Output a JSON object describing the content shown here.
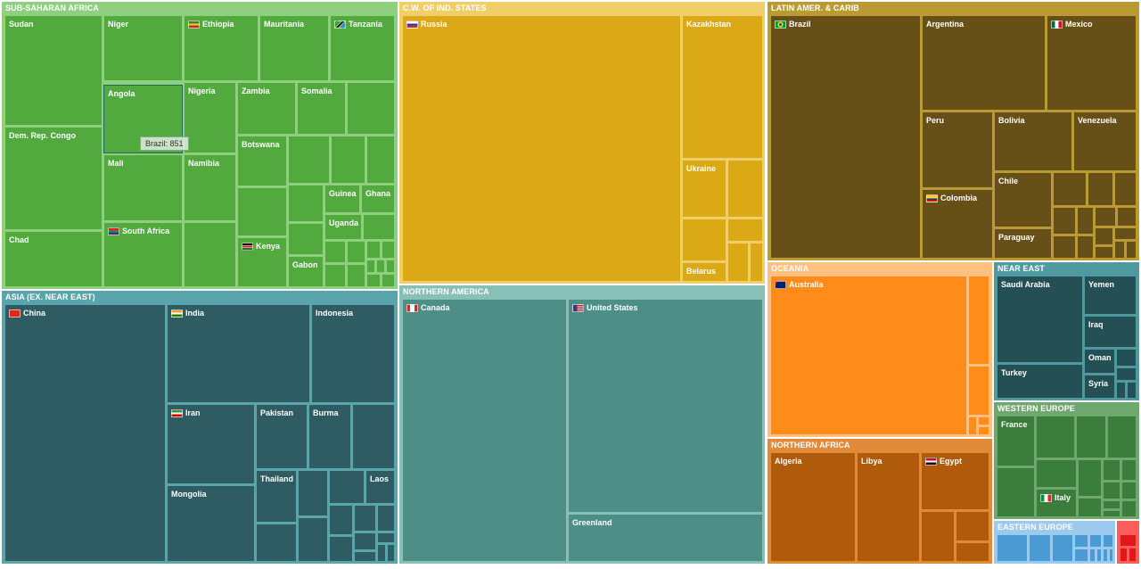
{
  "chart_data": {
    "type": "treemap",
    "tooltip": "Brazil: 851",
    "regions": [
      {
        "name": "SUB-SAHARAN AFRICA",
        "fill": "#52aa3f",
        "header": "#8fd07f",
        "border": "#8fd07f",
        "countries": [
          {
            "name": "Sudan"
          },
          {
            "name": "Niger"
          },
          {
            "name": "Ethiopia",
            "flag": "ethiopia-flag-icon"
          },
          {
            "name": "Mauritania"
          },
          {
            "name": "Tanzania",
            "flag": "tanzania-flag-icon"
          },
          {
            "name": "Dem. Rep. Congo"
          },
          {
            "name": "Chad"
          },
          {
            "name": "Angola",
            "highlight": true
          },
          {
            "name": "Nigeria"
          },
          {
            "name": "Zambia"
          },
          {
            "name": "Somalia"
          },
          {
            "name": "Mali"
          },
          {
            "name": "Namibia"
          },
          {
            "name": "South Africa",
            "flag": "south-africa-flag-icon"
          },
          {
            "name": "Botswana"
          },
          {
            "name": "Kenya",
            "flag": "kenya-flag-icon"
          },
          {
            "name": "Guinea"
          },
          {
            "name": "Ghana"
          },
          {
            "name": "Uganda"
          },
          {
            "name": "Gabon"
          }
        ]
      },
      {
        "name": "ASIA (EX. NEAR EAST)",
        "fill": "#2e5c62",
        "header": "#5aa4ab",
        "border": "#5aa4ab",
        "countries": [
          {
            "name": "China",
            "flag": "china-flag-icon"
          },
          {
            "name": "India",
            "flag": "india-flag-icon"
          },
          {
            "name": "Indonesia"
          },
          {
            "name": "Iran",
            "flag": "iran-flag-icon"
          },
          {
            "name": "Pakistan"
          },
          {
            "name": "Burma"
          },
          {
            "name": "Mongolia"
          },
          {
            "name": "Thailand"
          },
          {
            "name": "Laos"
          }
        ]
      },
      {
        "name": "C.W. OF IND. STATES",
        "fill": "#dba916",
        "header": "#f0ce6a",
        "border": "#f0ce6a",
        "countries": [
          {
            "name": "Russia",
            "flag": "russia-flag-icon"
          },
          {
            "name": "Kazakhstan"
          },
          {
            "name": "Ukraine"
          },
          {
            "name": "Belarus"
          }
        ]
      },
      {
        "name": "NORTHERN AMERICA",
        "fill": "#4d8e87",
        "header": "#88c0b8",
        "border": "#88c0b8",
        "countries": [
          {
            "name": "Canada",
            "flag": "canada-flag-icon"
          },
          {
            "name": "United States",
            "flag": "usa-flag-icon"
          },
          {
            "name": "Greenland"
          }
        ]
      },
      {
        "name": "LATIN AMER. & CARIB",
        "fill": "#675017",
        "header": "#b99a33",
        "border": "#b99a33",
        "countries": [
          {
            "name": "Brazil",
            "flag": "brazil-flag-icon"
          },
          {
            "name": "Argentina"
          },
          {
            "name": "Mexico",
            "flag": "mexico-flag-icon"
          },
          {
            "name": "Peru"
          },
          {
            "name": "Bolivia"
          },
          {
            "name": "Venezuela"
          },
          {
            "name": "Colombia",
            "flag": "colombia-flag-icon"
          },
          {
            "name": "Chile"
          },
          {
            "name": "Paraguay"
          }
        ]
      },
      {
        "name": "OCEANIA",
        "fill": "#ff8c1a",
        "header": "#ffc080",
        "border": "#ffc080",
        "countries": [
          {
            "name": "Australia",
            "flag": "australia-flag-icon"
          }
        ]
      },
      {
        "name": "NEAR EAST",
        "fill": "#245055",
        "header": "#4f9aa0",
        "border": "#4f9aa0",
        "countries": [
          {
            "name": "Saudi Arabia"
          },
          {
            "name": "Yemen"
          },
          {
            "name": "Iraq"
          },
          {
            "name": "Turkey"
          },
          {
            "name": "Oman"
          },
          {
            "name": "Syria"
          }
        ]
      },
      {
        "name": "NORTHERN AFRICA",
        "fill": "#b05b0c",
        "header": "#e08a3a",
        "border": "#e08a3a",
        "countries": [
          {
            "name": "Algeria"
          },
          {
            "name": "Libya"
          },
          {
            "name": "Egypt",
            "flag": "egypt-flag-icon"
          }
        ]
      },
      {
        "name": "WESTERN EUROPE",
        "fill": "#3b7d3b",
        "header": "#6fa86f",
        "border": "#6fa86f",
        "countries": [
          {
            "name": "France"
          },
          {
            "name": "Italy",
            "flag": "italy-flag-icon"
          }
        ]
      },
      {
        "name": "EASTERN EUROPE",
        "fill": "#4a9ad4",
        "header": "#9cc9ee",
        "border": "#9cc9ee",
        "countries": []
      },
      {
        "name": "",
        "fill": "#e01818",
        "header": "#ff5c5c",
        "border": "#ff5c5c",
        "countries": []
      }
    ]
  }
}
